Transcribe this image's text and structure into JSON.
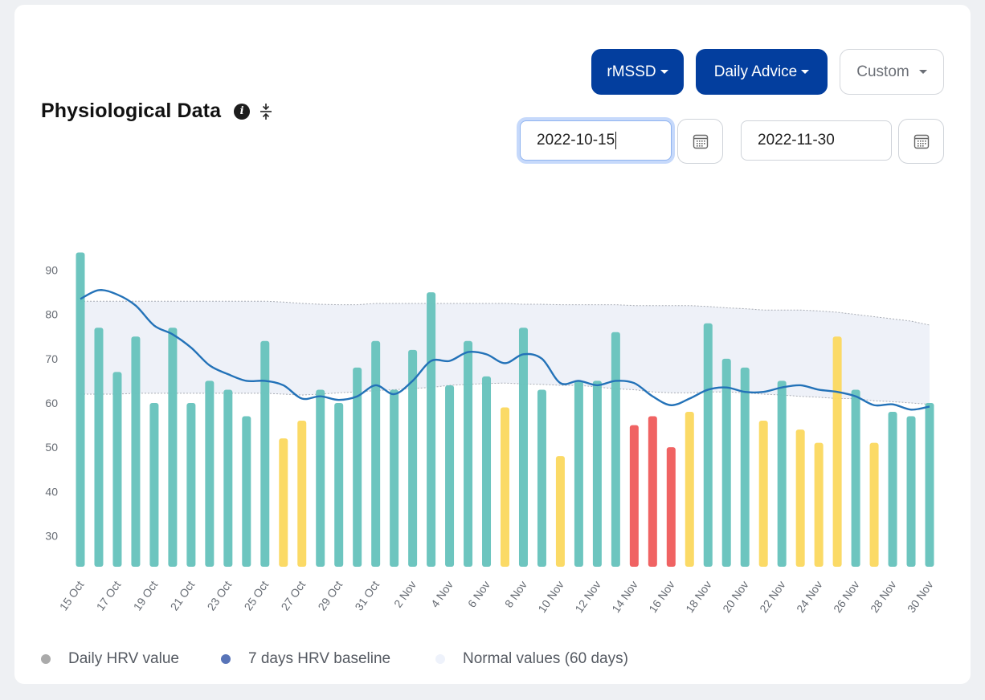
{
  "header": {
    "title": "Physiological Data",
    "info_icon": "i"
  },
  "controls": {
    "metric_label": "rMSSD",
    "advice_label": "Daily Advice",
    "range_label": "Custom",
    "start_date": "2022-10-15",
    "end_date": "2022-11-30"
  },
  "colors": {
    "primary": "#033e9e",
    "bar_green": "#68c3bd",
    "bar_yellow": "#fbd961",
    "bar_red": "#ef5e5e",
    "baseline_line": "#2372b8",
    "normal_band": "#edf0f8"
  },
  "legend": [
    {
      "label": "Daily HRV value",
      "color": "#aaaaaa"
    },
    {
      "label": "7 days HRV baseline",
      "color": "#5874b8"
    },
    {
      "label": "Normal values (60 days)",
      "color": "#eef2fb"
    }
  ],
  "chart_data": {
    "type": "bar",
    "ylim": [
      23,
      97
    ],
    "y_ticks": [
      30,
      40,
      50,
      60,
      70,
      80,
      90
    ],
    "x_tick_labels": [
      "15 Oct",
      "17 Oct",
      "19 Oct",
      "21 Oct",
      "23 Oct",
      "25 Oct",
      "27 Oct",
      "29 Oct",
      "31 Oct",
      "2 Nov",
      "4 Nov",
      "6 Nov",
      "8 Nov",
      "10 Nov",
      "12 Nov",
      "14 Nov",
      "16 Nov",
      "18 Nov",
      "20 Nov",
      "22 Nov",
      "24 Nov",
      "26 Nov",
      "28 Nov",
      "30 Nov"
    ],
    "start_date": "2022-10-15",
    "series": [
      {
        "name": "Daily HRV value",
        "type": "bar",
        "x": [
          "2022-10-15",
          "2022-10-16",
          "2022-10-17",
          "2022-10-18",
          "2022-10-19",
          "2022-10-20",
          "2022-10-21",
          "2022-10-22",
          "2022-10-23",
          "2022-10-24",
          "2022-10-25",
          "2022-10-26",
          "2022-10-27",
          "2022-10-28",
          "2022-10-29",
          "2022-10-30",
          "2022-10-31",
          "2022-11-01",
          "2022-11-02",
          "2022-11-03",
          "2022-11-04",
          "2022-11-05",
          "2022-11-06",
          "2022-11-07",
          "2022-11-08",
          "2022-11-09",
          "2022-11-10",
          "2022-11-11",
          "2022-11-12",
          "2022-11-13",
          "2022-11-14",
          "2022-11-15",
          "2022-11-16",
          "2022-11-17",
          "2022-11-18",
          "2022-11-19",
          "2022-11-20",
          "2022-11-21",
          "2022-11-22",
          "2022-11-23",
          "2022-11-24",
          "2022-11-25",
          "2022-11-26",
          "2022-11-27",
          "2022-11-28",
          "2022-11-29",
          "2022-11-30"
        ],
        "values": [
          94,
          77,
          67,
          75,
          60,
          77,
          60,
          65,
          63,
          57,
          74,
          52,
          56,
          63,
          60,
          68,
          74,
          63,
          72,
          85,
          64,
          74,
          66,
          59,
          77,
          63,
          48,
          65,
          65,
          76,
          55,
          57,
          50,
          58,
          78,
          70,
          68,
          56,
          65,
          54,
          51,
          75,
          63,
          51,
          58,
          57,
          60
        ],
        "status": [
          "g",
          "g",
          "g",
          "g",
          "g",
          "g",
          "g",
          "g",
          "g",
          "g",
          "g",
          "y",
          "y",
          "g",
          "g",
          "g",
          "g",
          "g",
          "g",
          "g",
          "g",
          "g",
          "g",
          "y",
          "g",
          "g",
          "y",
          "g",
          "g",
          "g",
          "r",
          "r",
          "r",
          "y",
          "g",
          "g",
          "g",
          "y",
          "g",
          "y",
          "y",
          "y",
          "g",
          "y",
          "g",
          "g",
          "g"
        ]
      },
      {
        "name": "7 days HRV baseline",
        "type": "line",
        "values": [
          83.5,
          85.5,
          84.5,
          82,
          77.5,
          75.5,
          72.5,
          68.5,
          66.5,
          65,
          65,
          64,
          61,
          61.5,
          60.7,
          61.5,
          64,
          62,
          65,
          69.5,
          69.5,
          71.5,
          71,
          69,
          71,
          70,
          64.5,
          65,
          64,
          65,
          64.5,
          61.5,
          59.5,
          61,
          63,
          63.5,
          62.5,
          62.5,
          63.5,
          64,
          63,
          62.5,
          61.5,
          59.5,
          59.7,
          58.5,
          59.2
        ]
      },
      {
        "name": "Normal values (60 days)",
        "type": "area",
        "upper": [
          83,
          83,
          83,
          83,
          83,
          83,
          83,
          83,
          83,
          83,
          83,
          82.8,
          82.5,
          82.3,
          82.2,
          82.2,
          82.5,
          82.5,
          82.5,
          82.5,
          82.5,
          82.5,
          82.5,
          82.5,
          82.3,
          82.3,
          82.2,
          82.2,
          82.2,
          82.2,
          82,
          82,
          82,
          82,
          81.8,
          81.5,
          81.3,
          81,
          81,
          81,
          80.8,
          80.5,
          80,
          79.5,
          79,
          78.5,
          77.6
        ],
        "lower": [
          62,
          62,
          62,
          62.2,
          62.2,
          62.2,
          62.2,
          62.2,
          62.2,
          62.2,
          62.2,
          62,
          61.8,
          62,
          62.3,
          62.5,
          62.8,
          63,
          63.3,
          63.5,
          64,
          64.2,
          64.4,
          64.5,
          64.3,
          64.2,
          64,
          64,
          63.6,
          63.2,
          63,
          62.5,
          62.3,
          62.3,
          62.5,
          62.5,
          62.3,
          62,
          61.8,
          61.5,
          61.3,
          61,
          61,
          60.5,
          60.3,
          60,
          59.7
        ]
      }
    ],
    "legend_position": "bottom-left",
    "grid": false
  }
}
